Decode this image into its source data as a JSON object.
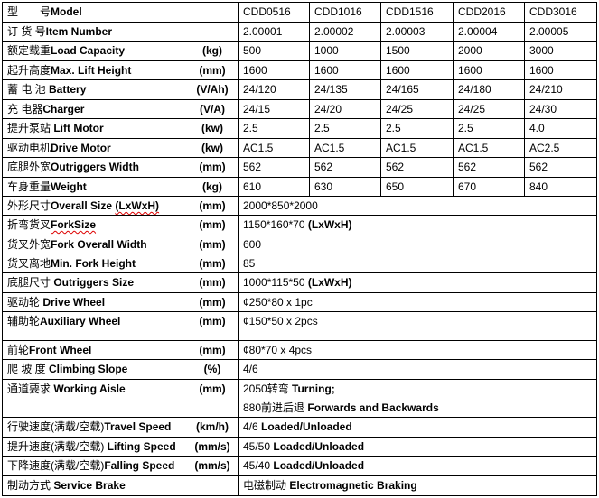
{
  "rows": [
    {
      "cn": "型　　号",
      "en": "Model",
      "unit": "",
      "values": [
        "CDD0516",
        "CDD1016",
        "CDD1516",
        "CDD2016",
        "CDD3016"
      ]
    },
    {
      "cn": "订 货 号",
      "en": "Item Number",
      "unit": "",
      "values": [
        "2.00001",
        "2.00002",
        "2.00003",
        "2.00004",
        "2.00005"
      ]
    },
    {
      "cn": "额定载重",
      "en": "Load Capacity",
      "unit": "(kg)",
      "values": [
        "500",
        "1000",
        "1500",
        "2000",
        "3000"
      ]
    },
    {
      "cn": "起升高度",
      "en": "Max. Lift Height",
      "unit": "(mm)",
      "values": [
        "1600",
        "1600",
        "1600",
        "1600",
        "1600"
      ]
    },
    {
      "cn": "蓄 电 池 ",
      "en": " Battery",
      "unit": "(V/Ah)",
      "values": [
        "24/120",
        "24/135",
        "24/165",
        "24/180",
        "24/210"
      ]
    },
    {
      "cn": "充 电器",
      "en": "Charger",
      "unit": "(V/A)",
      "values": [
        "24/15",
        "24/20",
        "24/25",
        "24/25",
        "24/30"
      ]
    },
    {
      "cn": "提升泵站 ",
      "en": "Lift Motor",
      "unit": "(kw)",
      "values": [
        "2.5",
        "2.5",
        "2.5",
        "2.5",
        "4.0"
      ]
    },
    {
      "cn": "驱动电机",
      "en": "Drive Motor",
      "unit": "(kw)",
      "values": [
        "AC1.5",
        "AC1.5",
        "AC1.5",
        "AC1.5",
        "AC2.5"
      ]
    },
    {
      "cn": "底腿外宽",
      "en": "Outriggers Width",
      "unit": "(mm)",
      "values": [
        "562",
        "562",
        "562",
        "562",
        "562"
      ]
    },
    {
      "cn": "车身重量",
      "en": "Weight",
      "unit": "(kg)",
      "values": [
        "610",
        "630",
        "650",
        "670",
        "840"
      ]
    },
    {
      "cn": "外形尺寸",
      "en": "Overall Size ",
      "en_wavy": "(LxWxH)",
      "unit": "(mm)",
      "span": [
        {
          "text": "2000*850*2000"
        }
      ]
    },
    {
      "cn": "折弯货叉",
      "en": "",
      "en_wavy": "ForkSize",
      "unit": "(mm)",
      "span": [
        {
          "text": "1150*160*70 ",
          "bold": "(LxWxH)"
        }
      ]
    },
    {
      "cn": "货叉外宽",
      "en": "Fork Overall Width",
      "unit": "(mm)",
      "span": [
        {
          "text": "600"
        }
      ]
    },
    {
      "cn": "货叉离地",
      "en": "Min. Fork Height",
      "unit": "(mm)",
      "span": [
        {
          "text": "85"
        }
      ]
    },
    {
      "cn": "底腿尺寸 ",
      "en": "Outriggers  Size",
      "unit": "(mm)",
      "span": [
        {
          "text": "1000*115*50 ",
          "bold": "(LxWxH)"
        }
      ]
    },
    {
      "cn": "驱动轮 ",
      "en": "Drive Wheel",
      "unit": "(mm)",
      "span": [
        {
          "text": "¢250*80 x 1pc"
        }
      ]
    },
    {
      "cn": "辅助轮",
      "en": "Auxiliary Wheel",
      "unit": "(mm)",
      "span": [
        {
          "text": "¢150*50 x 2pcs"
        }
      ]
    },
    {
      "cn": "前轮",
      "en": "Front Wheel",
      "unit": "(mm)",
      "span": [
        {
          "text": "¢80*70 x 4pcs"
        }
      ]
    },
    {
      "cn": "爬 坡 度 ",
      "en": "Climbing Slope",
      "unit": "(%)",
      "span": [
        {
          "text": "4/6"
        }
      ]
    },
    {
      "cn": "通道要求 ",
      "en": "Working Aisle",
      "unit": "(mm)",
      "span": [
        {
          "text": "2050转弯 ",
          "bold": "Turning;"
        },
        {
          "text": "880前进后退 ",
          "bold": "Forwards and Backwards"
        }
      ]
    },
    {
      "cn": "行驶速度(满载/空载)",
      "en": "Travel Speed",
      "unit": "(km/h)",
      "span": [
        {
          "text": "4/6 ",
          "bold": "Loaded/Unloaded"
        }
      ]
    },
    {
      "cn": "提升速度(满载/空载) ",
      "en": "Lifting Speed",
      "unit": "(mm/s)",
      "span": [
        {
          "text": "45/50 ",
          "bold": "Loaded/Unloaded"
        }
      ]
    },
    {
      "cn": "下降速度(满载/空载)",
      "en": "Falling Speed",
      "unit": "(mm/s)",
      "span": [
        {
          "text": "45/40 ",
          "bold": "Loaded/Unloaded"
        }
      ]
    },
    {
      "cn": "制动方式 ",
      "en": "Service Brake",
      "unit": "",
      "span": [
        {
          "text": "电磁制动 ",
          "bold": "Electromagnetic Braking"
        }
      ]
    }
  ]
}
